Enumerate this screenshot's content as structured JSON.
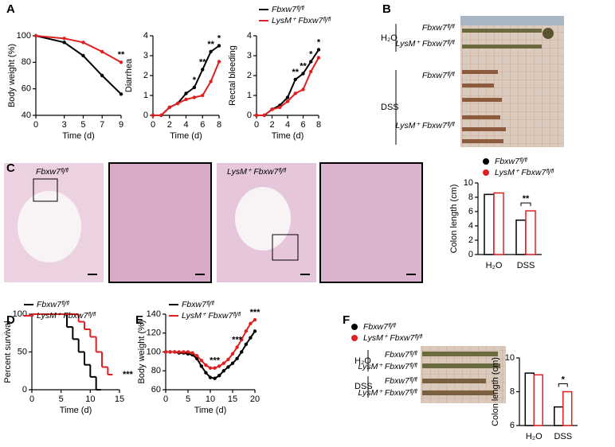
{
  "panel_labels": [
    "A",
    "B",
    "C",
    "D",
    "E",
    "F"
  ],
  "photos": {
    "B": {
      "groups": [
        {
          "label": "H₂O",
          "rows": [
            "Fbxw7ᶠˡ/ᶠˡ",
            "LysM⁺ Fbxw7ᶠˡ/ᶠˡ"
          ]
        },
        {
          "label": "DSS",
          "rows": [
            "Fbxw7ᶠˡ/ᶠˡ",
            "LysM⁺ Fbxw7ᶠˡ/ᶠˡ"
          ]
        }
      ]
    },
    "C": {
      "labels": [
        "Fbxw7ᶠˡ/ᶠˡ",
        "LysM⁺ Fbxw7ᶠˡ/ᶠˡ"
      ]
    },
    "F": {
      "groups": [
        {
          "label": "H₂O",
          "rows": [
            "Fbxw7ᶠˡ/ᶠˡ",
            "LysM⁺ Fbxw7ᶠˡ/ᶠˡ"
          ]
        },
        {
          "label": "DSS",
          "rows": [
            "Fbxw7ᶠˡ/ᶠˡ",
            "LysM⁺ Fbxw7ᶠˡ/ᶠˡ"
          ]
        }
      ]
    }
  },
  "chart_data": [
    {
      "type": "line",
      "ylabel": "Body weight (%)",
      "xlabel": "Time (d)",
      "x": [
        0,
        3,
        5,
        7,
        9
      ],
      "xlim": [
        0,
        9
      ],
      "xticks": [
        0,
        3,
        5,
        7,
        9
      ],
      "ylim": [
        40,
        100
      ],
      "yticks": [
        40,
        60,
        80,
        100
      ],
      "series": [
        {
          "color": "#000000",
          "values": [
            100,
            95,
            85,
            70,
            56
          ]
        },
        {
          "color": "#e02020",
          "values": [
            100,
            98,
            95,
            88,
            80
          ]
        }
      ],
      "significance": [
        null,
        null,
        null,
        null,
        "**"
      ]
    },
    {
      "type": "line",
      "ylabel": "Diarrhea",
      "xlabel": "Time (d)",
      "x": [
        0,
        1,
        2,
        3,
        4,
        5,
        6,
        7,
        8
      ],
      "xlim": [
        0,
        8
      ],
      "xticks": [
        0,
        2,
        4,
        6,
        8
      ],
      "ylim": [
        0,
        4
      ],
      "yticks": [
        0,
        1,
        2,
        3,
        4
      ],
      "series": [
        {
          "color": "#000000",
          "values": [
            0,
            0,
            0.4,
            0.6,
            1.1,
            1.4,
            2.3,
            3.2,
            3.5
          ]
        },
        {
          "color": "#e02020",
          "values": [
            0,
            0,
            0.4,
            0.6,
            0.8,
            0.9,
            1.0,
            1.7,
            2.7
          ]
        }
      ],
      "significance": [
        null,
        null,
        null,
        null,
        null,
        "*",
        "**",
        "**",
        "*"
      ]
    },
    {
      "type": "line",
      "ylabel": "Rectal bleeding",
      "xlabel": "Time (d)",
      "x": [
        0,
        1,
        2,
        3,
        4,
        5,
        6,
        7,
        8
      ],
      "xlim": [
        0,
        8
      ],
      "xticks": [
        0,
        2,
        4,
        6,
        8
      ],
      "ylim": [
        0,
        4
      ],
      "yticks": [
        0,
        1,
        2,
        3,
        4
      ],
      "series": [
        {
          "name": "Fbxw7ᶠˡ/ᶠˡ",
          "color": "#000000",
          "values": [
            0,
            0,
            0.3,
            0.5,
            0.9,
            1.8,
            2.1,
            2.7,
            3.3
          ]
        },
        {
          "name": "LysM⁺ Fbxw7ᶠˡ/ᶠˡ",
          "color": "#e02020",
          "values": [
            0,
            0,
            0.3,
            0.4,
            0.7,
            1.1,
            1.3,
            2.2,
            2.9
          ]
        }
      ],
      "significance": [
        null,
        null,
        null,
        null,
        null,
        "**",
        "**",
        "*",
        "*"
      ],
      "legend": "upper left"
    },
    {
      "type": "bar",
      "ylabel": "Colon length (cm)",
      "categories": [
        "H₂O",
        "DSS"
      ],
      "ylim": [
        0,
        10
      ],
      "yticks": [
        0,
        2,
        4,
        6,
        8,
        10
      ],
      "series": [
        {
          "name": "Fbxw7ᶠˡ/ᶠˡ",
          "color": "#000000",
          "values": [
            8.4,
            4.8
          ]
        },
        {
          "name": "LysM⁺ Fbxw7ᶠˡ/ᶠˡ",
          "color": "#e02020",
          "values": [
            8.6,
            6.1
          ]
        }
      ],
      "significance": [
        null,
        "**"
      ],
      "legend": "upper left"
    },
    {
      "type": "step",
      "ylabel": "Percent survival",
      "xlabel": "Time (d)",
      "xlim": [
        0,
        15
      ],
      "xticks": [
        0,
        5,
        10,
        15
      ],
      "ylim": [
        0,
        100
      ],
      "yticks": [
        0,
        50,
        100
      ],
      "series": [
        {
          "name": "Fbxw7ᶠˡ/ᶠˡ",
          "color": "#000000",
          "x": [
            0,
            6,
            7,
            8,
            9,
            10,
            11
          ],
          "values": [
            100,
            83,
            67,
            50,
            33,
            17,
            0
          ]
        },
        {
          "name": "LysM⁺ Fbxw7ᶠˡ/ᶠˡ",
          "color": "#e02020",
          "x": [
            0,
            8,
            9,
            10,
            11,
            12,
            13
          ],
          "values": [
            100,
            90,
            80,
            70,
            50,
            30,
            20
          ]
        }
      ],
      "annotation": "***",
      "legend": "upper left"
    },
    {
      "type": "line",
      "ylabel": "Body weight (%)",
      "xlabel": "Time (d)",
      "x": [
        0,
        1,
        2,
        3,
        4,
        5,
        6,
        7,
        8,
        9,
        10,
        11,
        12,
        13,
        14,
        15,
        16,
        17,
        18,
        19,
        20
      ],
      "xlim": [
        0,
        20
      ],
      "xticks": [
        0,
        5,
        10,
        15,
        20
      ],
      "ylim": [
        60,
        140
      ],
      "yticks": [
        60,
        80,
        100,
        120,
        140
      ],
      "series": [
        {
          "name": "Fbxw7ᶠˡ/ᶠˡ",
          "color": "#000000",
          "values": [
            100,
            100,
            100,
            99,
            99,
            98,
            97,
            93,
            85,
            78,
            73,
            72,
            75,
            80,
            84,
            88,
            93,
            100,
            108,
            115,
            122
          ]
        },
        {
          "name": "LysM⁺ Fbxw7ᶠˡ/ᶠˡ",
          "color": "#e02020",
          "values": [
            100,
            100,
            100,
            100,
            100,
            100,
            99,
            96,
            91,
            86,
            83,
            83,
            85,
            88,
            92,
            98,
            105,
            113,
            122,
            130,
            134
          ]
        }
      ],
      "significance": [
        null,
        null,
        null,
        null,
        null,
        null,
        null,
        null,
        null,
        null,
        null,
        "***",
        null,
        null,
        null,
        null,
        "***",
        null,
        null,
        null,
        "***"
      ],
      "legend": "upper left"
    },
    {
      "type": "bar",
      "ylabel": "Colon length (cm)",
      "categories": [
        "H₂O",
        "DSS"
      ],
      "ylim": [
        6,
        10
      ],
      "yticks": [
        6,
        8,
        10
      ],
      "series": [
        {
          "name": "Fbxw7ᶠˡ/ᶠˡ",
          "color": "#000000",
          "values": [
            9.1,
            7.1
          ]
        },
        {
          "name": "LysM⁺ Fbxw7ᶠˡ/ᶠˡ",
          "color": "#e02020",
          "values": [
            9.0,
            8.0
          ]
        }
      ],
      "significance": [
        null,
        "*"
      ],
      "legend": "upper left"
    }
  ]
}
